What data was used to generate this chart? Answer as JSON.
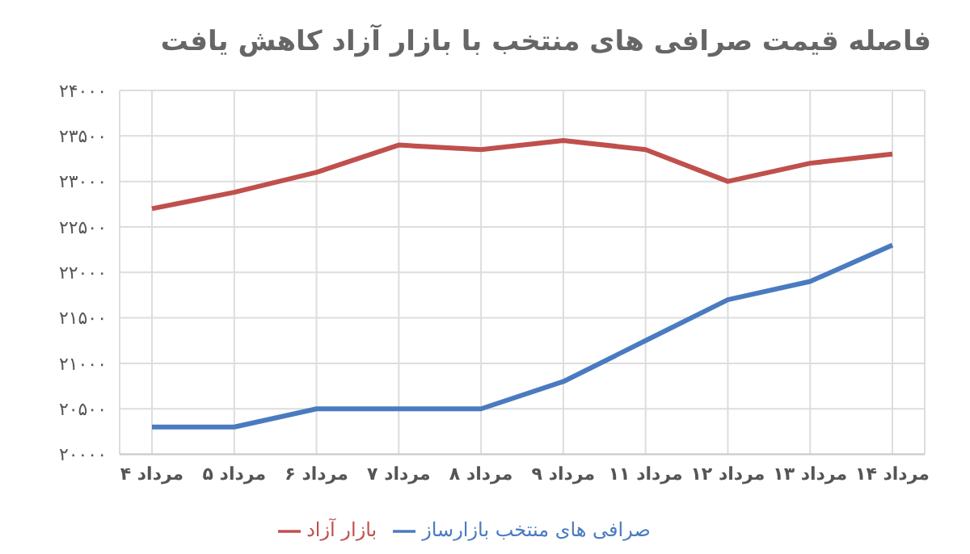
{
  "chart_data": {
    "type": "line",
    "title": "فاصله قیمت صرافی های منتخب با بازار آزاد کاهش یافت",
    "categories": [
      "۴ مرداد",
      "۵ مرداد",
      "۶ مرداد",
      "۷ مرداد",
      "۸ مرداد",
      "۹ مرداد",
      "۱۱ مرداد",
      "۱۲ مرداد",
      "۱۳ مرداد",
      "۱۴ مرداد"
    ],
    "series": [
      {
        "name": "صرافی های منتخب بازارساز",
        "color": "#4a7bc0",
        "values": [
          20300,
          20300,
          20500,
          20500,
          20500,
          20800,
          21250,
          21700,
          21900,
          22300
        ]
      },
      {
        "name": "بازار آزاد",
        "color": "#c0504d",
        "values": [
          22700,
          22880,
          23100,
          23400,
          23350,
          23450,
          23350,
          23000,
          23200,
          23300
        ]
      }
    ],
    "ylim": [
      20000,
      24000
    ],
    "yticks": [
      {
        "value": 20000,
        "label": "۲۰۰۰۰"
      },
      {
        "value": 20500,
        "label": "۲۰۵۰۰"
      },
      {
        "value": 21000,
        "label": "۲۱۰۰۰"
      },
      {
        "value": 21500,
        "label": "۲۱۵۰۰"
      },
      {
        "value": 22000,
        "label": "۲۲۰۰۰"
      },
      {
        "value": 22500,
        "label": "۲۲۵۰۰"
      },
      {
        "value": 23000,
        "label": "۲۳۰۰۰"
      },
      {
        "value": 23500,
        "label": "۲۳۵۰۰"
      },
      {
        "value": 24000,
        "label": "۲۴۰۰۰"
      }
    ],
    "grid": true,
    "legend": "bottom",
    "marker": "none",
    "line_style": "solid"
  }
}
